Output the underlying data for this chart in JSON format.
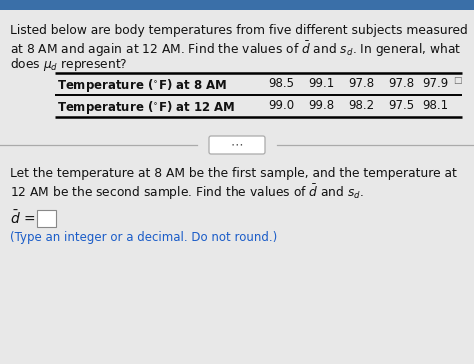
{
  "bg_color": "#e8e8e8",
  "header_color": "#3a6fa8",
  "font_color": "#111111",
  "hint_color": "#1a5cc8",
  "table_line_color": "#000000",
  "white": "#ffffff",
  "gray_line": "#aaaaaa",
  "row1_label": "Temperature (°F) at 8 AM",
  "row2_label": "Temperature (°F) at 12 AM",
  "row1_values": [
    "98.5",
    "99.1",
    "97.8",
    "97.8",
    "97.9"
  ],
  "row2_values": [
    "99.0",
    "99.8",
    "98.2",
    "97.5",
    "98.1"
  ],
  "hint_text": "(Type an integer or a decimal. Do not round.)",
  "figsize": [
    4.74,
    3.64
  ],
  "dpi": 100
}
